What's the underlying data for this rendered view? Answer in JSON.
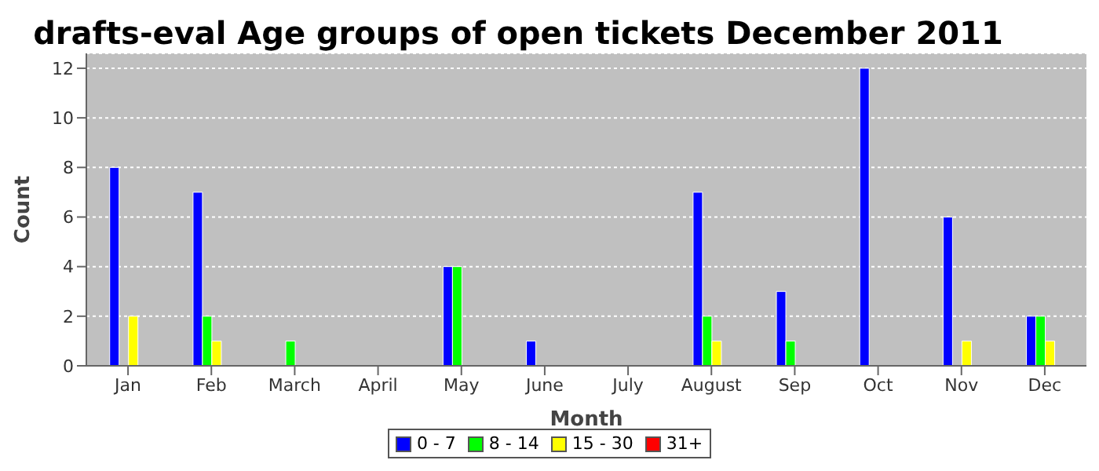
{
  "chart_data": {
    "type": "bar",
    "title": "drafts-eval Age groups of open tickets December 2011",
    "xlabel": "Month",
    "ylabel": "Count",
    "categories": [
      "Jan",
      "Feb",
      "March",
      "April",
      "May",
      "June",
      "July",
      "August",
      "Sep",
      "Oct",
      "Nov",
      "Dec"
    ],
    "series": [
      {
        "name": "0 - 7",
        "color": "#0000ff",
        "values": [
          8,
          7,
          0,
          0,
          4,
          1,
          0,
          7,
          3,
          12,
          6,
          2
        ]
      },
      {
        "name": "8 - 14",
        "color": "#00ff00",
        "values": [
          0,
          2,
          1,
          0,
          4,
          0,
          0,
          2,
          1,
          0,
          0,
          2
        ]
      },
      {
        "name": "15 - 30",
        "color": "#ffff00",
        "values": [
          2,
          1,
          0,
          0,
          0,
          0,
          0,
          1,
          0,
          0,
          1,
          1
        ]
      },
      {
        "name": "31+",
        "color": "#ff0000",
        "values": [
          0,
          0,
          0,
          0,
          0,
          0,
          0,
          0,
          0,
          0,
          0,
          0
        ]
      }
    ],
    "ylim": [
      0,
      12.6
    ],
    "yticks": [
      0,
      2,
      4,
      6,
      8,
      10,
      12
    ],
    "grid": "y",
    "legend": "bottom"
  }
}
